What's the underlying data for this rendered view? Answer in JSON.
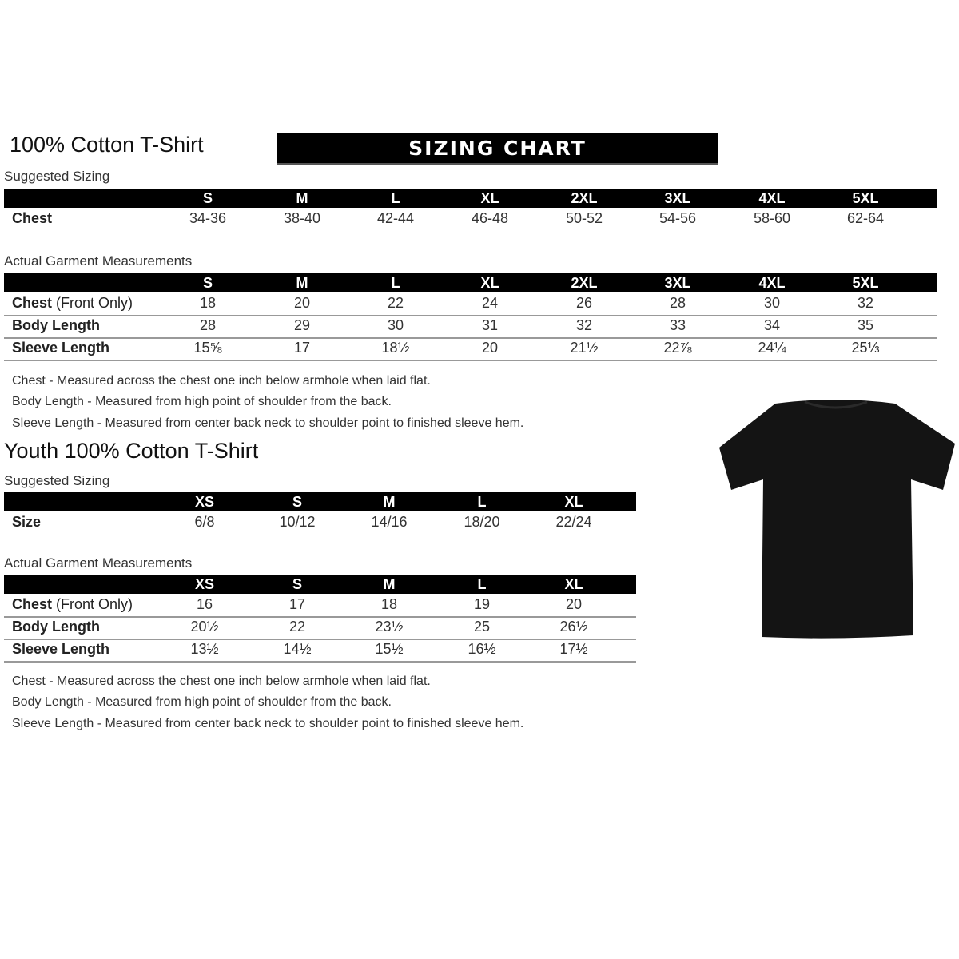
{
  "adult": {
    "title": "100% Cotton T-Shirt",
    "banner": "SIZING CHART",
    "suggested": {
      "heading": "Suggested Sizing",
      "sizes": [
        "S",
        "M",
        "L",
        "XL",
        "2XL",
        "3XL",
        "4XL",
        "5XL"
      ],
      "rows": [
        {
          "label": "Chest",
          "values": [
            "34-36",
            "38-40",
            "42-44",
            "46-48",
            "50-52",
            "54-56",
            "58-60",
            "62-64"
          ]
        }
      ]
    },
    "actual": {
      "heading": "Actual Garment Measurements",
      "sizes": [
        "S",
        "M",
        "L",
        "XL",
        "2XL",
        "3XL",
        "4XL",
        "5XL"
      ],
      "rows": [
        {
          "label": "Chest",
          "label_note": " (Front Only)",
          "values": [
            "18",
            "20",
            "22",
            "24",
            "26",
            "28",
            "30",
            "32"
          ]
        },
        {
          "label": "Body Length",
          "values": [
            "28",
            "29",
            "30",
            "31",
            "32",
            "33",
            "34",
            "35"
          ]
        },
        {
          "label": "Sleeve Length",
          "values": [
            "15⅝",
            "17",
            "18½",
            "20",
            "21½",
            "22⅞",
            "24¼",
            "25⅓"
          ]
        }
      ]
    },
    "notes": [
      "Chest - Measured across the chest one inch below armhole when laid flat.",
      "Body Length - Measured from high point of shoulder from the back.",
      "Sleeve Length - Measured from center back neck to shoulder point to finished sleeve hem."
    ]
  },
  "youth": {
    "title": "Youth 100% Cotton T-Shirt",
    "suggested": {
      "heading": "Suggested Sizing",
      "sizes": [
        "XS",
        "S",
        "M",
        "L",
        "XL"
      ],
      "rows": [
        {
          "label": "Size",
          "values": [
            "6/8",
            "10/12",
            "14/16",
            "18/20",
            "22/24"
          ]
        }
      ]
    },
    "actual": {
      "heading": "Actual Garment Measurements",
      "sizes": [
        "XS",
        "S",
        "M",
        "L",
        "XL"
      ],
      "rows": [
        {
          "label": "Chest",
          "label_note": " (Front Only)",
          "values": [
            "16",
            "17",
            "18",
            "19",
            "20"
          ]
        },
        {
          "label": "Body Length",
          "values": [
            "20½",
            "22",
            "23½",
            "25",
            "26½"
          ]
        },
        {
          "label": "Sleeve Length",
          "values": [
            "13½",
            "14½",
            "15½",
            "16½",
            "17½"
          ]
        }
      ]
    },
    "notes": [
      "Chest - Measured across the chest one inch below armhole when laid flat.",
      "Body Length - Measured from high point of shoulder from the back.",
      "Sleeve Length - Measured from center back neck to shoulder point to finished sleeve hem."
    ]
  },
  "image": {
    "icon": "t-shirt-icon",
    "color": "#111111"
  }
}
